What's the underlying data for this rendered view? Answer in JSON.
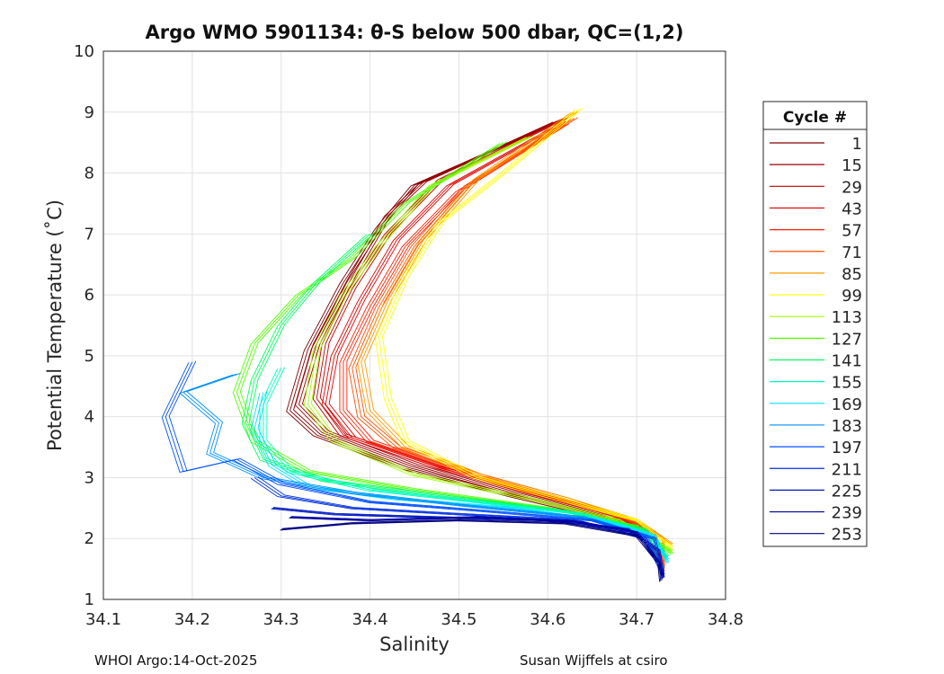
{
  "chart_data": {
    "type": "line",
    "title": "Argo WMO 5901134: θ-S below 500 dbar,  QC=(1,2)",
    "xlabel": "Salinity",
    "ylabel": "Potential Temperature (˚C)",
    "xlim": [
      34.1,
      34.8
    ],
    "ylim": [
      1,
      10
    ],
    "xticks": [
      "34.1",
      "34.2",
      "34.3",
      "34.4",
      "34.5",
      "34.6",
      "34.7",
      "34.8"
    ],
    "yticks": [
      "1",
      "2",
      "3",
      "4",
      "5",
      "6",
      "7",
      "8",
      "9",
      "10"
    ],
    "grid": true,
    "legend_title": "Cycle #",
    "legend_position": "right",
    "series": [
      {
        "name": "1",
        "color": "#800000",
        "points": [
          [
            34.62,
            8.9
          ],
          [
            34.45,
            7.8
          ],
          [
            34.41,
            7.1
          ],
          [
            34.37,
            6.2
          ],
          [
            34.33,
            5.1
          ],
          [
            34.31,
            4.1
          ],
          [
            34.34,
            3.7
          ],
          [
            34.44,
            3.15
          ],
          [
            34.56,
            2.7
          ],
          [
            34.66,
            2.35
          ],
          [
            34.71,
            2.1
          ],
          [
            34.73,
            1.5
          ]
        ]
      },
      {
        "name": "15",
        "color": "#9a0000",
        "points": [
          [
            34.61,
            8.85
          ],
          [
            34.46,
            7.85
          ],
          [
            34.42,
            7.3
          ],
          [
            34.38,
            6.3
          ],
          [
            34.34,
            5.2
          ],
          [
            34.32,
            4.2
          ],
          [
            34.35,
            3.75
          ],
          [
            34.45,
            3.2
          ],
          [
            34.56,
            2.75
          ],
          [
            34.66,
            2.38
          ],
          [
            34.72,
            2.1
          ],
          [
            34.73,
            1.45
          ]
        ]
      },
      {
        "name": "29",
        "color": "#c00000",
        "points": [
          [
            34.62,
            8.9
          ],
          [
            34.48,
            7.9
          ],
          [
            34.42,
            7.0
          ],
          [
            34.38,
            6.1
          ],
          [
            34.35,
            5.2
          ],
          [
            34.34,
            4.3
          ],
          [
            34.37,
            3.7
          ],
          [
            34.47,
            3.2
          ],
          [
            34.58,
            2.75
          ],
          [
            34.67,
            2.4
          ],
          [
            34.72,
            2.1
          ],
          [
            34.73,
            1.5
          ]
        ]
      },
      {
        "name": "43",
        "color": "#e00000",
        "points": [
          [
            34.62,
            8.85
          ],
          [
            34.49,
            7.8
          ],
          [
            34.43,
            6.9
          ],
          [
            34.39,
            5.9
          ],
          [
            34.36,
            5.0
          ],
          [
            34.35,
            4.2
          ],
          [
            34.38,
            3.65
          ],
          [
            34.48,
            3.15
          ],
          [
            34.59,
            2.72
          ],
          [
            34.68,
            2.38
          ],
          [
            34.72,
            2.1
          ],
          [
            34.73,
            1.5
          ]
        ]
      },
      {
        "name": "57",
        "color": "#ff2000",
        "points": [
          [
            34.62,
            8.8
          ],
          [
            34.5,
            7.7
          ],
          [
            34.44,
            6.8
          ],
          [
            34.4,
            5.8
          ],
          [
            34.37,
            4.9
          ],
          [
            34.37,
            4.1
          ],
          [
            34.4,
            3.6
          ],
          [
            34.5,
            3.1
          ],
          [
            34.6,
            2.7
          ],
          [
            34.68,
            2.35
          ],
          [
            34.72,
            2.1
          ],
          [
            34.73,
            1.5
          ]
        ]
      },
      {
        "name": "71",
        "color": "#ff5000",
        "points": [
          [
            34.63,
            8.9
          ],
          [
            34.51,
            7.8
          ],
          [
            34.45,
            6.8
          ],
          [
            34.41,
            5.8
          ],
          [
            34.38,
            4.8
          ],
          [
            34.39,
            4.0
          ],
          [
            34.43,
            3.5
          ],
          [
            34.52,
            3.05
          ],
          [
            34.62,
            2.65
          ],
          [
            34.69,
            2.32
          ],
          [
            34.73,
            2.0
          ],
          [
            34.73,
            1.5
          ]
        ]
      },
      {
        "name": "85",
        "color": "#ff9a00",
        "points": [
          [
            34.63,
            9.0
          ],
          [
            34.52,
            7.9
          ],
          [
            34.46,
            6.9
          ],
          [
            34.42,
            5.9
          ],
          [
            34.39,
            4.9
          ],
          [
            34.4,
            4.1
          ],
          [
            34.44,
            3.5
          ],
          [
            34.53,
            3.0
          ],
          [
            34.62,
            2.65
          ],
          [
            34.7,
            2.3
          ],
          [
            34.74,
            1.9
          ]
        ]
      },
      {
        "name": "99",
        "color": "#ffff00",
        "points": [
          [
            34.635,
            9.05
          ],
          [
            34.55,
            8.0
          ],
          [
            34.48,
            7.2
          ],
          [
            34.44,
            6.3
          ],
          [
            34.41,
            5.3
          ],
          [
            34.42,
            4.3
          ],
          [
            34.44,
            3.6
          ],
          [
            34.52,
            3.0
          ],
          [
            34.62,
            2.62
          ],
          [
            34.7,
            2.3
          ],
          [
            34.74,
            1.85
          ]
        ]
      },
      {
        "name": "113",
        "color": "#a0ff00",
        "points": [
          [
            34.58,
            8.6
          ],
          [
            34.47,
            7.8
          ],
          [
            34.41,
            6.8
          ],
          [
            34.37,
            6.0
          ],
          [
            34.34,
            5.1
          ],
          [
            34.33,
            4.2
          ],
          [
            34.36,
            3.6
          ],
          [
            34.45,
            3.05
          ],
          [
            34.58,
            2.65
          ],
          [
            34.68,
            2.3
          ],
          [
            34.74,
            1.8
          ]
        ]
      },
      {
        "name": "127",
        "color": "#50ff00",
        "points": [
          [
            34.55,
            8.5
          ],
          [
            34.44,
            7.5
          ],
          [
            34.38,
            6.6
          ],
          [
            34.32,
            6.0
          ],
          [
            34.27,
            5.2
          ],
          [
            34.25,
            4.4
          ],
          [
            34.27,
            3.6
          ],
          [
            34.33,
            3.1
          ],
          [
            34.45,
            2.8
          ],
          [
            34.6,
            2.5
          ],
          [
            34.7,
            2.2
          ],
          [
            34.74,
            1.75
          ]
        ]
      },
      {
        "name": "141",
        "color": "#00ff60",
        "points": [
          [
            34.4,
            7.0
          ],
          [
            34.34,
            6.2
          ],
          [
            34.3,
            5.5
          ],
          [
            34.27,
            4.6
          ],
          [
            34.26,
            3.9
          ],
          [
            34.28,
            3.3
          ],
          [
            34.35,
            2.95
          ],
          [
            34.48,
            2.7
          ],
          [
            34.62,
            2.45
          ],
          [
            34.71,
            2.15
          ],
          [
            34.735,
            1.7
          ]
        ]
      },
      {
        "name": "155",
        "color": "#00ffc0",
        "points": [
          [
            34.3,
            4.8
          ],
          [
            34.28,
            4.2
          ],
          [
            34.28,
            3.6
          ],
          [
            34.31,
            3.1
          ],
          [
            34.4,
            2.8
          ],
          [
            34.52,
            2.6
          ],
          [
            34.64,
            2.4
          ],
          [
            34.71,
            2.1
          ],
          [
            34.735,
            1.65
          ]
        ]
      },
      {
        "name": "169",
        "color": "#00e0ff",
        "points": [
          [
            34.28,
            4.4
          ],
          [
            34.27,
            3.8
          ],
          [
            34.29,
            3.2
          ],
          [
            34.33,
            2.85
          ],
          [
            34.43,
            2.65
          ],
          [
            34.56,
            2.5
          ],
          [
            34.66,
            2.3
          ],
          [
            34.72,
            2.05
          ],
          [
            34.735,
            1.6
          ]
        ]
      },
      {
        "name": "183",
        "color": "#0090ff",
        "points": [
          [
            34.25,
            4.7
          ],
          [
            34.19,
            4.4
          ],
          [
            34.23,
            3.9
          ],
          [
            34.22,
            3.4
          ],
          [
            34.28,
            3.0
          ],
          [
            34.38,
            2.75
          ],
          [
            34.5,
            2.55
          ],
          [
            34.64,
            2.35
          ],
          [
            34.71,
            2.05
          ],
          [
            34.73,
            1.5
          ]
        ]
      },
      {
        "name": "197",
        "color": "#0050ff",
        "points": [
          [
            34.2,
            4.9
          ],
          [
            34.17,
            4.0
          ],
          [
            34.19,
            3.1
          ],
          [
            34.25,
            3.3
          ],
          [
            34.3,
            2.9
          ],
          [
            34.4,
            2.6
          ],
          [
            34.53,
            2.45
          ],
          [
            34.65,
            2.3
          ],
          [
            34.72,
            2.0
          ],
          [
            34.73,
            1.4
          ]
        ]
      },
      {
        "name": "211",
        "color": "#0030e0",
        "points": [
          [
            34.27,
            3.0
          ],
          [
            34.3,
            2.7
          ],
          [
            34.38,
            2.5
          ],
          [
            34.5,
            2.4
          ],
          [
            34.63,
            2.3
          ],
          [
            34.71,
            2.0
          ],
          [
            34.73,
            1.4
          ]
        ]
      },
      {
        "name": "225",
        "color": "#0018c0",
        "points": [
          [
            34.29,
            2.5
          ],
          [
            34.36,
            2.4
          ],
          [
            34.47,
            2.35
          ],
          [
            34.6,
            2.3
          ],
          [
            34.69,
            2.15
          ],
          [
            34.725,
            1.8
          ],
          [
            34.73,
            1.35
          ]
        ]
      },
      {
        "name": "239",
        "color": "#0000a0",
        "points": [
          [
            34.31,
            2.35
          ],
          [
            34.4,
            2.3
          ],
          [
            34.52,
            2.35
          ],
          [
            34.63,
            2.28
          ],
          [
            34.7,
            2.1
          ],
          [
            34.725,
            1.6
          ],
          [
            34.73,
            1.35
          ]
        ]
      },
      {
        "name": "253",
        "color": "#000080",
        "points": [
          [
            34.3,
            2.15
          ],
          [
            34.38,
            2.25
          ],
          [
            34.5,
            2.3
          ],
          [
            34.62,
            2.25
          ],
          [
            34.7,
            2.05
          ],
          [
            34.725,
            1.6
          ],
          [
            34.727,
            1.3
          ]
        ]
      }
    ]
  },
  "footer": {
    "left": "WHOI Argo:14-Oct-2025",
    "right": "Susan Wijffels at csiro"
  }
}
